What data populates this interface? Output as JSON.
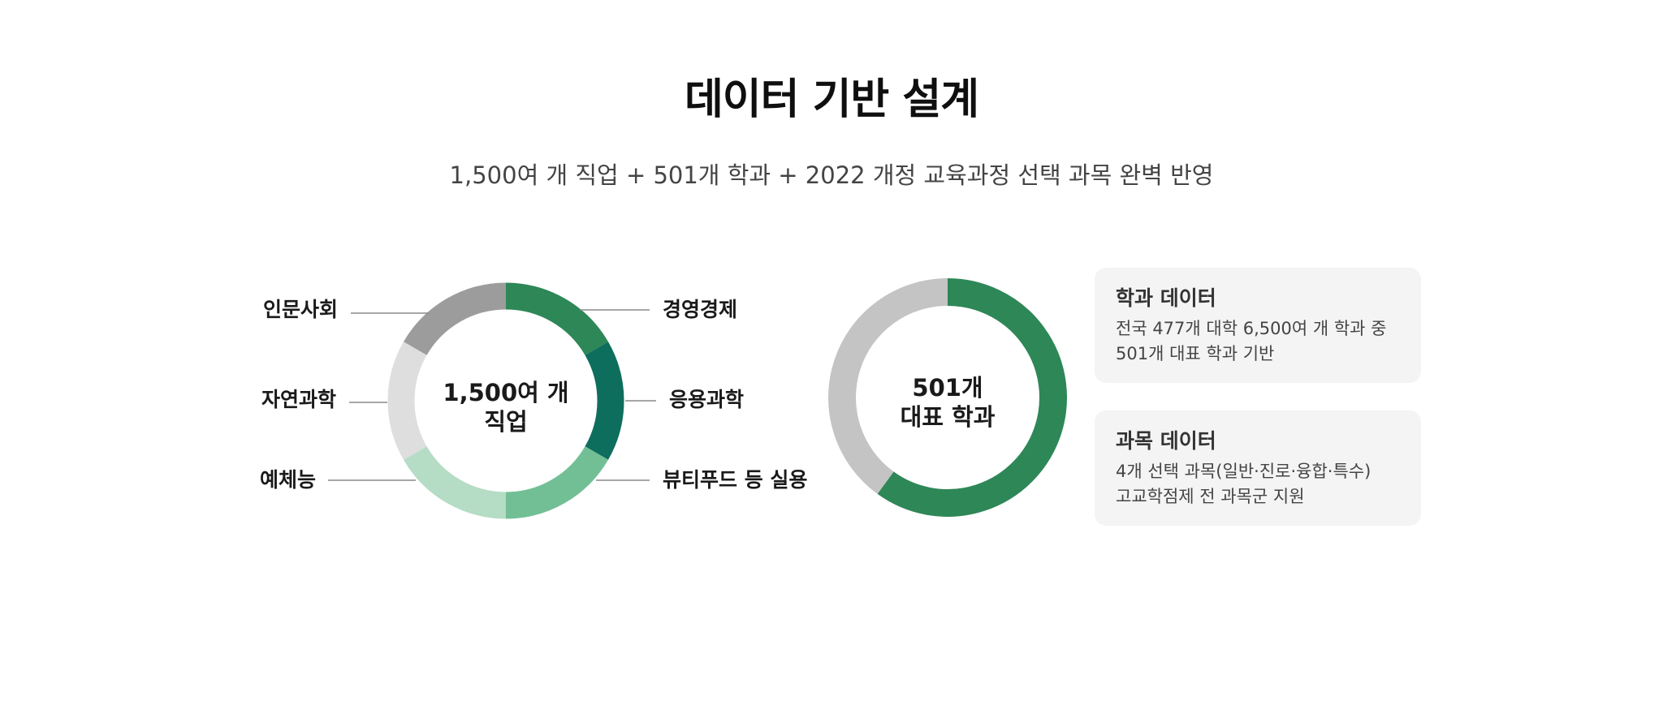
{
  "page": {
    "title": "데이터 기반 설계",
    "subtitle": "1,500여 개 직업 + 501개 학과 + 2022 개정 교육과정 선택 과목 완벽 반영"
  },
  "chart_data": [
    {
      "type": "pie",
      "variant": "donut",
      "center_label": [
        "1,500여 개",
        "직업"
      ],
      "categories": [
        "경영경제",
        "응용과학",
        "뷰티푸드 등 실용",
        "예체능",
        "자연과학",
        "인문사회"
      ],
      "values": [
        1,
        1,
        1,
        1,
        1,
        1
      ],
      "colors": [
        "#2e8757",
        "#0e6e5e",
        "#72bf96",
        "#b5dcc5",
        "#dedede",
        "#9c9c9c"
      ]
    },
    {
      "type": "pie",
      "variant": "donut",
      "center_label": [
        "501개",
        "대표 학과"
      ],
      "categories": [
        "",
        ""
      ],
      "values": [
        60,
        40
      ],
      "colors": [
        "#2e8757",
        "#c4c4c4"
      ]
    }
  ],
  "cards": [
    {
      "title": "학과 데이터",
      "lines": [
        "전국 477개 대학 6,500여 개 학과 중",
        "501개 대표 학과 기반"
      ]
    },
    {
      "title": "과목 데이터",
      "lines": [
        "4개 선택 과목(일반·진로·융합·특수)",
        "고교학점제 전 과목군 지원"
      ]
    }
  ]
}
